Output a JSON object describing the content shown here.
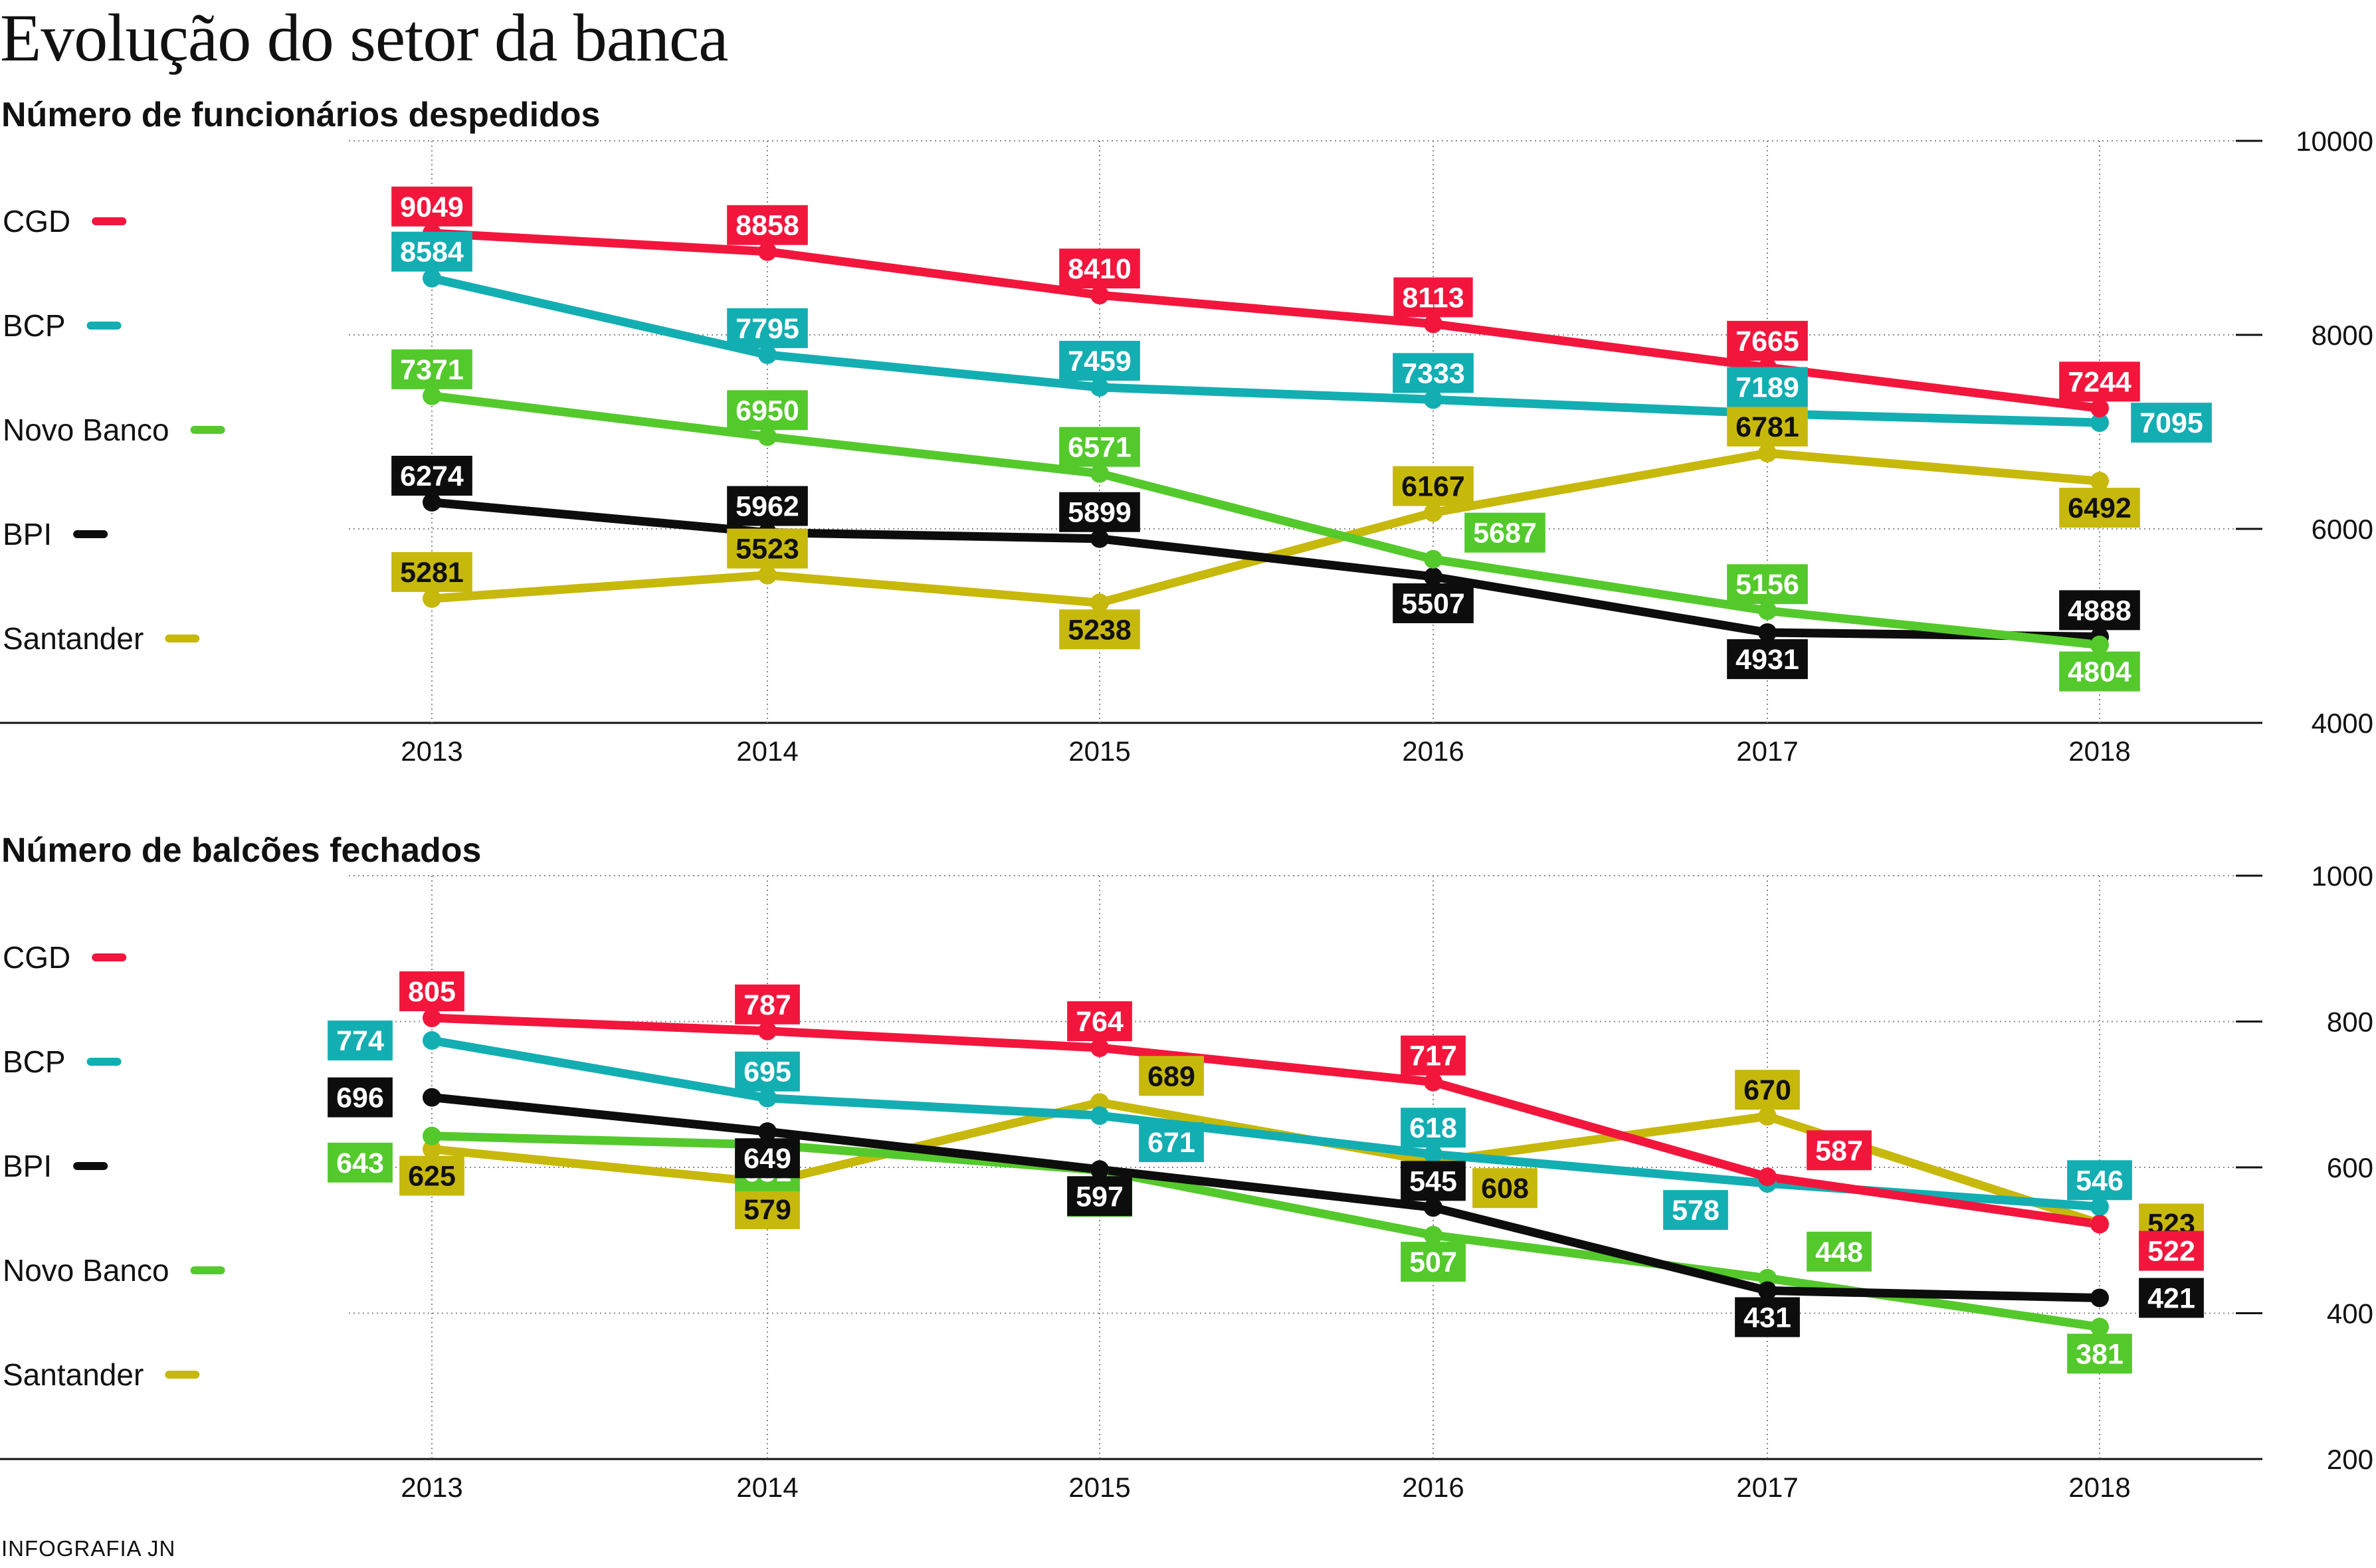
{
  "title": "Evolução do setor da banca",
  "credit": "INFOGRAFIA JN",
  "colors": {
    "CGD": "#f2163d",
    "BCP": "#13aeb2",
    "Novo Banco": "#54c92c",
    "BPI": "#0d0d0d",
    "Santander": "#c7b80c"
  },
  "chart_data": [
    {
      "type": "line",
      "title": "Número de funcionários despedidos",
      "categories": [
        "2013",
        "2014",
        "2015",
        "2016",
        "2017",
        "2018"
      ],
      "ylim": [
        4000,
        10000
      ],
      "yticks": [
        "4000",
        "6000",
        "8000",
        "10000"
      ],
      "y_axis_side": "right",
      "grid": "vertical dotted at each year, horizontal dotted at each y tick",
      "legend": [
        "CGD",
        "BCP",
        "Novo Banco",
        "BPI",
        "Santander"
      ],
      "legend_position": "left",
      "series": [
        {
          "name": "CGD",
          "values": [
            9049,
            8858,
            8410,
            8113,
            7665,
            7244
          ]
        },
        {
          "name": "BCP",
          "values": [
            8584,
            7795,
            7459,
            7333,
            7189,
            7095
          ]
        },
        {
          "name": "Novo Banco",
          "values": [
            7371,
            6950,
            6571,
            5687,
            5156,
            4804
          ]
        },
        {
          "name": "BPI",
          "values": [
            6274,
            5962,
            5899,
            5507,
            4931,
            4888
          ]
        },
        {
          "name": "Santander",
          "values": [
            5281,
            5523,
            5238,
            6167,
            6781,
            6492
          ]
        }
      ]
    },
    {
      "type": "line",
      "title": "Número de balcões fechados",
      "categories": [
        "2013",
        "2014",
        "2015",
        "2016",
        "2017",
        "2018"
      ],
      "ylim": [
        200,
        1000
      ],
      "yticks": [
        "200",
        "400",
        "600",
        "800",
        "1000"
      ],
      "y_axis_side": "right",
      "grid": "vertical dotted at each year, horizontal dotted at each y tick",
      "legend": [
        "CGD",
        "BCP",
        "BPI",
        "Novo Banco",
        "Santander"
      ],
      "legend_position": "left",
      "series": [
        {
          "name": "CGD",
          "values": [
            805,
            787,
            764,
            717,
            587,
            522
          ]
        },
        {
          "name": "BCP",
          "values": [
            774,
            695,
            671,
            618,
            578,
            546
          ]
        },
        {
          "name": "BPI",
          "values": [
            696,
            649,
            597,
            545,
            431,
            421
          ]
        },
        {
          "name": "Novo Banco",
          "values": [
            643,
            631,
            596,
            507,
            448,
            381
          ]
        },
        {
          "name": "Santander",
          "values": [
            625,
            579,
            689,
            608,
            670,
            523
          ]
        }
      ]
    }
  ]
}
